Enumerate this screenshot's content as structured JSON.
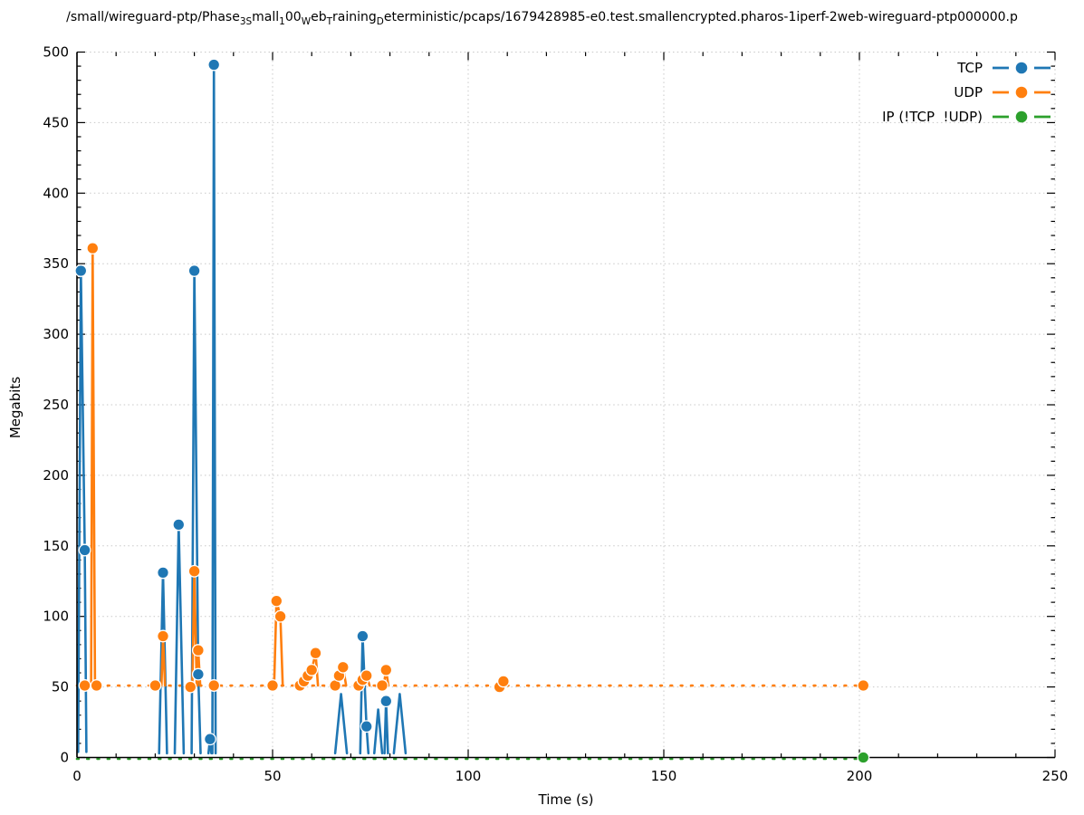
{
  "title": {
    "segments": [
      {
        "text": "/small/wireguard-ptp/Phase",
        "sub": false
      },
      {
        "text": "3S",
        "sub": true
      },
      {
        "text": "mall",
        "sub": false
      },
      {
        "text": "1",
        "sub": true
      },
      {
        "text": "00",
        "sub": false
      },
      {
        "text": "W",
        "sub": true
      },
      {
        "text": "eb",
        "sub": false
      },
      {
        "text": "T",
        "sub": true
      },
      {
        "text": "raining",
        "sub": false
      },
      {
        "text": "D",
        "sub": true
      },
      {
        "text": "eterministic/pcaps/1679428985-e0.test.smallencrypted.pharos-1iperf-2web-wireguard-ptp000000.p",
        "sub": false
      }
    ]
  },
  "axes": {
    "xlabel": "Time (s)",
    "ylabel": "Megabits"
  },
  "chart_data": {
    "type": "line",
    "xlabel": "Time (s)",
    "ylabel": "Megabits",
    "xlim": [
      0,
      250
    ],
    "ylim": [
      0,
      500
    ],
    "x_ticks": [
      0,
      50,
      100,
      150,
      200,
      250
    ],
    "y_ticks": [
      0,
      50,
      100,
      150,
      200,
      250,
      300,
      350,
      400,
      450,
      500
    ],
    "minor_tick_step": 10,
    "grid": true,
    "grid_color": "#c8c8c8",
    "marker_edge_color": "#ffffff",
    "legend_position": "top-right",
    "series": [
      {
        "name": "TCP",
        "color": "#1f77b4",
        "line_style": "solid",
        "segments": [
          [
            [
              0.3,
              4
            ],
            [
              1,
              345
            ],
            [
              2,
              147
            ],
            [
              2.4,
              4
            ]
          ],
          [
            [
              21,
              3
            ],
            [
              22,
              131
            ],
            [
              23,
              3
            ]
          ],
          [
            [
              25,
              3
            ],
            [
              26,
              165
            ],
            [
              27.3,
              3
            ]
          ],
          [
            [
              29.3,
              3
            ],
            [
              30,
              345
            ],
            [
              31,
              59
            ],
            [
              31.6,
              3
            ]
          ],
          [
            [
              33.6,
              3
            ],
            [
              34,
              13
            ],
            [
              34.35,
              3
            ]
          ],
          [
            [
              34.6,
              3
            ],
            [
              35,
              491
            ],
            [
              35.45,
              3
            ]
          ],
          [
            [
              66,
              3
            ],
            [
              67.5,
              45
            ],
            [
              69,
              3
            ]
          ],
          [
            [
              72.4,
              3
            ],
            [
              73,
              86
            ],
            [
              74,
              22
            ],
            [
              74.5,
              3
            ]
          ],
          [
            [
              76,
              3
            ],
            [
              77,
              34
            ],
            [
              78,
              3
            ]
          ],
          [
            [
              78.6,
              3
            ],
            [
              79,
              40
            ],
            [
              79.5,
              3
            ]
          ],
          [
            [
              81,
              3
            ],
            [
              82.5,
              45
            ],
            [
              84,
              3
            ]
          ]
        ],
        "markers": [
          [
            1,
            345
          ],
          [
            2,
            147
          ],
          [
            22,
            131
          ],
          [
            26,
            165
          ],
          [
            30,
            345
          ],
          [
            31,
            59
          ],
          [
            34,
            13
          ],
          [
            35,
            491
          ],
          [
            73,
            86
          ],
          [
            74,
            22
          ],
          [
            79,
            40
          ]
        ]
      },
      {
        "name": "UDP",
        "color": "#ff7f0e",
        "line_style": "dashed",
        "baseline_y": 51,
        "baseline_x": [
          0,
          201
        ],
        "segments": [
          [
            [
              3.6,
              51
            ],
            [
              4,
              361
            ],
            [
              4.6,
              51
            ]
          ],
          [
            [
              21.6,
              51
            ],
            [
              22,
              86
            ],
            [
              22.5,
              51
            ]
          ],
          [
            [
              29.5,
              51
            ],
            [
              30,
              132
            ],
            [
              30.6,
              51
            ]
          ],
          [
            [
              30.8,
              51
            ],
            [
              31,
              76
            ],
            [
              31.5,
              51
            ]
          ],
          [
            [
              50.4,
              51
            ],
            [
              51,
              111
            ],
            [
              52,
              100
            ],
            [
              52.6,
              51
            ]
          ],
          [
            [
              56.5,
              51
            ],
            [
              57,
              51
            ],
            [
              58,
              54
            ],
            [
              59,
              58
            ],
            [
              60,
              62
            ],
            [
              61,
              74
            ],
            [
              61.6,
              51
            ]
          ],
          [
            [
              66,
              51
            ],
            [
              67,
              58
            ],
            [
              68,
              64
            ],
            [
              68.8,
              51
            ]
          ],
          [
            [
              72,
              51
            ],
            [
              73,
              55
            ],
            [
              74,
              58
            ],
            [
              74.8,
              51
            ]
          ],
          [
            [
              78.4,
              51
            ],
            [
              79,
              62
            ],
            [
              79.6,
              51
            ]
          ],
          [
            [
              107.5,
              51
            ],
            [
              108,
              50
            ],
            [
              109,
              54
            ],
            [
              109.6,
              51
            ]
          ]
        ],
        "markers": [
          [
            2,
            51
          ],
          [
            4,
            361
          ],
          [
            5,
            51
          ],
          [
            20,
            51
          ],
          [
            22,
            86
          ],
          [
            29,
            50
          ],
          [
            30,
            132
          ],
          [
            31,
            76
          ],
          [
            35,
            51
          ],
          [
            50,
            51
          ],
          [
            51,
            111
          ],
          [
            52,
            100
          ],
          [
            57,
            51
          ],
          [
            58,
            54
          ],
          [
            59,
            58
          ],
          [
            60,
            62
          ],
          [
            61,
            74
          ],
          [
            66,
            51
          ],
          [
            67,
            58
          ],
          [
            68,
            64
          ],
          [
            72,
            51
          ],
          [
            73,
            55
          ],
          [
            74,
            58
          ],
          [
            78,
            51
          ],
          [
            79,
            62
          ],
          [
            108,
            50
          ],
          [
            109,
            54
          ],
          [
            201,
            51
          ]
        ]
      },
      {
        "name": "IP (!TCP  !UDP)",
        "color": "#2ca02c",
        "line_style": "dashed",
        "baseline_y": 0,
        "baseline_x": [
          0,
          201
        ],
        "segments": [],
        "markers": [
          [
            201,
            0
          ]
        ]
      }
    ]
  }
}
